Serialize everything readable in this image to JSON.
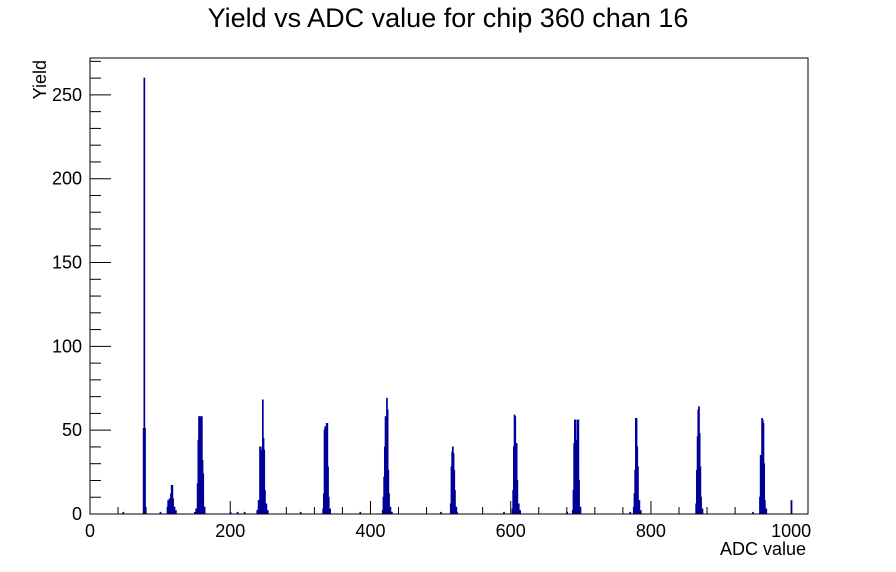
{
  "chart_data": {
    "type": "histogram",
    "title": "Yield vs ADC value for chip 360 chan 16",
    "xlabel": "ADC value",
    "ylabel": "Yield",
    "xlim": [
      0,
      1024
    ],
    "ylim": [
      0,
      272
    ],
    "x_ticks": [
      0,
      200,
      400,
      600,
      800,
      1000
    ],
    "y_ticks": [
      0,
      50,
      100,
      150,
      200,
      250
    ],
    "bin_width": 1,
    "line_color": "#000099",
    "bins": [
      {
        "x": 47,
        "y": 1
      },
      {
        "x": 76,
        "y": 51
      },
      {
        "x": 77,
        "y": 260
      },
      {
        "x": 78,
        "y": 51
      },
      {
        "x": 100,
        "y": 1
      },
      {
        "x": 110,
        "y": 4
      },
      {
        "x": 111,
        "y": 8
      },
      {
        "x": 113,
        "y": 9
      },
      {
        "x": 115,
        "y": 12
      },
      {
        "x": 116,
        "y": 17
      },
      {
        "x": 117,
        "y": 17
      },
      {
        "x": 118,
        "y": 9
      },
      {
        "x": 120,
        "y": 4
      },
      {
        "x": 122,
        "y": 2
      },
      {
        "x": 149,
        "y": 1
      },
      {
        "x": 151,
        "y": 3
      },
      {
        "x": 153,
        "y": 18
      },
      {
        "x": 154,
        "y": 44
      },
      {
        "x": 155,
        "y": 58
      },
      {
        "x": 156,
        "y": 58
      },
      {
        "x": 157,
        "y": 30
      },
      {
        "x": 158,
        "y": 58
      },
      {
        "x": 159,
        "y": 58
      },
      {
        "x": 160,
        "y": 32
      },
      {
        "x": 161,
        "y": 24
      },
      {
        "x": 163,
        "y": 4
      },
      {
        "x": 200,
        "y": 1
      },
      {
        "x": 210,
        "y": 1
      },
      {
        "x": 220,
        "y": 1
      },
      {
        "x": 238,
        "y": 2
      },
      {
        "x": 240,
        "y": 8
      },
      {
        "x": 242,
        "y": 40
      },
      {
        "x": 243,
        "y": 40
      },
      {
        "x": 244,
        "y": 38
      },
      {
        "x": 245,
        "y": 22
      },
      {
        "x": 246,
        "y": 68
      },
      {
        "x": 247,
        "y": 45
      },
      {
        "x": 248,
        "y": 38
      },
      {
        "x": 249,
        "y": 14
      },
      {
        "x": 251,
        "y": 6
      },
      {
        "x": 253,
        "y": 2
      },
      {
        "x": 300,
        "y": 1
      },
      {
        "x": 332,
        "y": 3
      },
      {
        "x": 333,
        "y": 12
      },
      {
        "x": 334,
        "y": 50
      },
      {
        "x": 335,
        "y": 52
      },
      {
        "x": 336,
        "y": 50
      },
      {
        "x": 337,
        "y": 54
      },
      {
        "x": 338,
        "y": 54
      },
      {
        "x": 339,
        "y": 28
      },
      {
        "x": 340,
        "y": 10
      },
      {
        "x": 342,
        "y": 3
      },
      {
        "x": 385,
        "y": 1
      },
      {
        "x": 417,
        "y": 2
      },
      {
        "x": 418,
        "y": 10
      },
      {
        "x": 419,
        "y": 22
      },
      {
        "x": 420,
        "y": 40
      },
      {
        "x": 421,
        "y": 58
      },
      {
        "x": 422,
        "y": 40
      },
      {
        "x": 423,
        "y": 69
      },
      {
        "x": 424,
        "y": 62
      },
      {
        "x": 425,
        "y": 26
      },
      {
        "x": 426,
        "y": 12
      },
      {
        "x": 428,
        "y": 4
      },
      {
        "x": 430,
        "y": 1
      },
      {
        "x": 500,
        "y": 1
      },
      {
        "x": 514,
        "y": 6
      },
      {
        "x": 515,
        "y": 28
      },
      {
        "x": 516,
        "y": 37
      },
      {
        "x": 517,
        "y": 40
      },
      {
        "x": 518,
        "y": 36
      },
      {
        "x": 519,
        "y": 26
      },
      {
        "x": 520,
        "y": 14
      },
      {
        "x": 522,
        "y": 4
      },
      {
        "x": 523,
        "y": 1
      },
      {
        "x": 590,
        "y": 1
      },
      {
        "x": 602,
        "y": 3
      },
      {
        "x": 603,
        "y": 14
      },
      {
        "x": 604,
        "y": 40
      },
      {
        "x": 605,
        "y": 59
      },
      {
        "x": 606,
        "y": 58
      },
      {
        "x": 607,
        "y": 42
      },
      {
        "x": 608,
        "y": 42
      },
      {
        "x": 609,
        "y": 20
      },
      {
        "x": 611,
        "y": 6
      },
      {
        "x": 613,
        "y": 2
      },
      {
        "x": 680,
        "y": 1
      },
      {
        "x": 688,
        "y": 2
      },
      {
        "x": 689,
        "y": 14
      },
      {
        "x": 690,
        "y": 42
      },
      {
        "x": 691,
        "y": 56
      },
      {
        "x": 692,
        "y": 56
      },
      {
        "x": 693,
        "y": 30
      },
      {
        "x": 694,
        "y": 44
      },
      {
        "x": 695,
        "y": 56
      },
      {
        "x": 696,
        "y": 56
      },
      {
        "x": 697,
        "y": 20
      },
      {
        "x": 699,
        "y": 4
      },
      {
        "x": 770,
        "y": 1
      },
      {
        "x": 775,
        "y": 4
      },
      {
        "x": 776,
        "y": 12
      },
      {
        "x": 777,
        "y": 26
      },
      {
        "x": 778,
        "y": 57
      },
      {
        "x": 779,
        "y": 57
      },
      {
        "x": 780,
        "y": 40
      },
      {
        "x": 781,
        "y": 28
      },
      {
        "x": 783,
        "y": 8
      },
      {
        "x": 785,
        "y": 2
      },
      {
        "x": 864,
        "y": 6
      },
      {
        "x": 865,
        "y": 26
      },
      {
        "x": 866,
        "y": 46
      },
      {
        "x": 867,
        "y": 62
      },
      {
        "x": 868,
        "y": 64
      },
      {
        "x": 869,
        "y": 48
      },
      {
        "x": 870,
        "y": 28
      },
      {
        "x": 871,
        "y": 10
      },
      {
        "x": 873,
        "y": 3
      },
      {
        "x": 945,
        "y": 1
      },
      {
        "x": 955,
        "y": 10
      },
      {
        "x": 956,
        "y": 35
      },
      {
        "x": 957,
        "y": 32
      },
      {
        "x": 958,
        "y": 57
      },
      {
        "x": 959,
        "y": 56
      },
      {
        "x": 960,
        "y": 54
      },
      {
        "x": 961,
        "y": 30
      },
      {
        "x": 962,
        "y": 8
      },
      {
        "x": 964,
        "y": 3
      },
      {
        "x": 1000,
        "y": 8
      }
    ]
  }
}
